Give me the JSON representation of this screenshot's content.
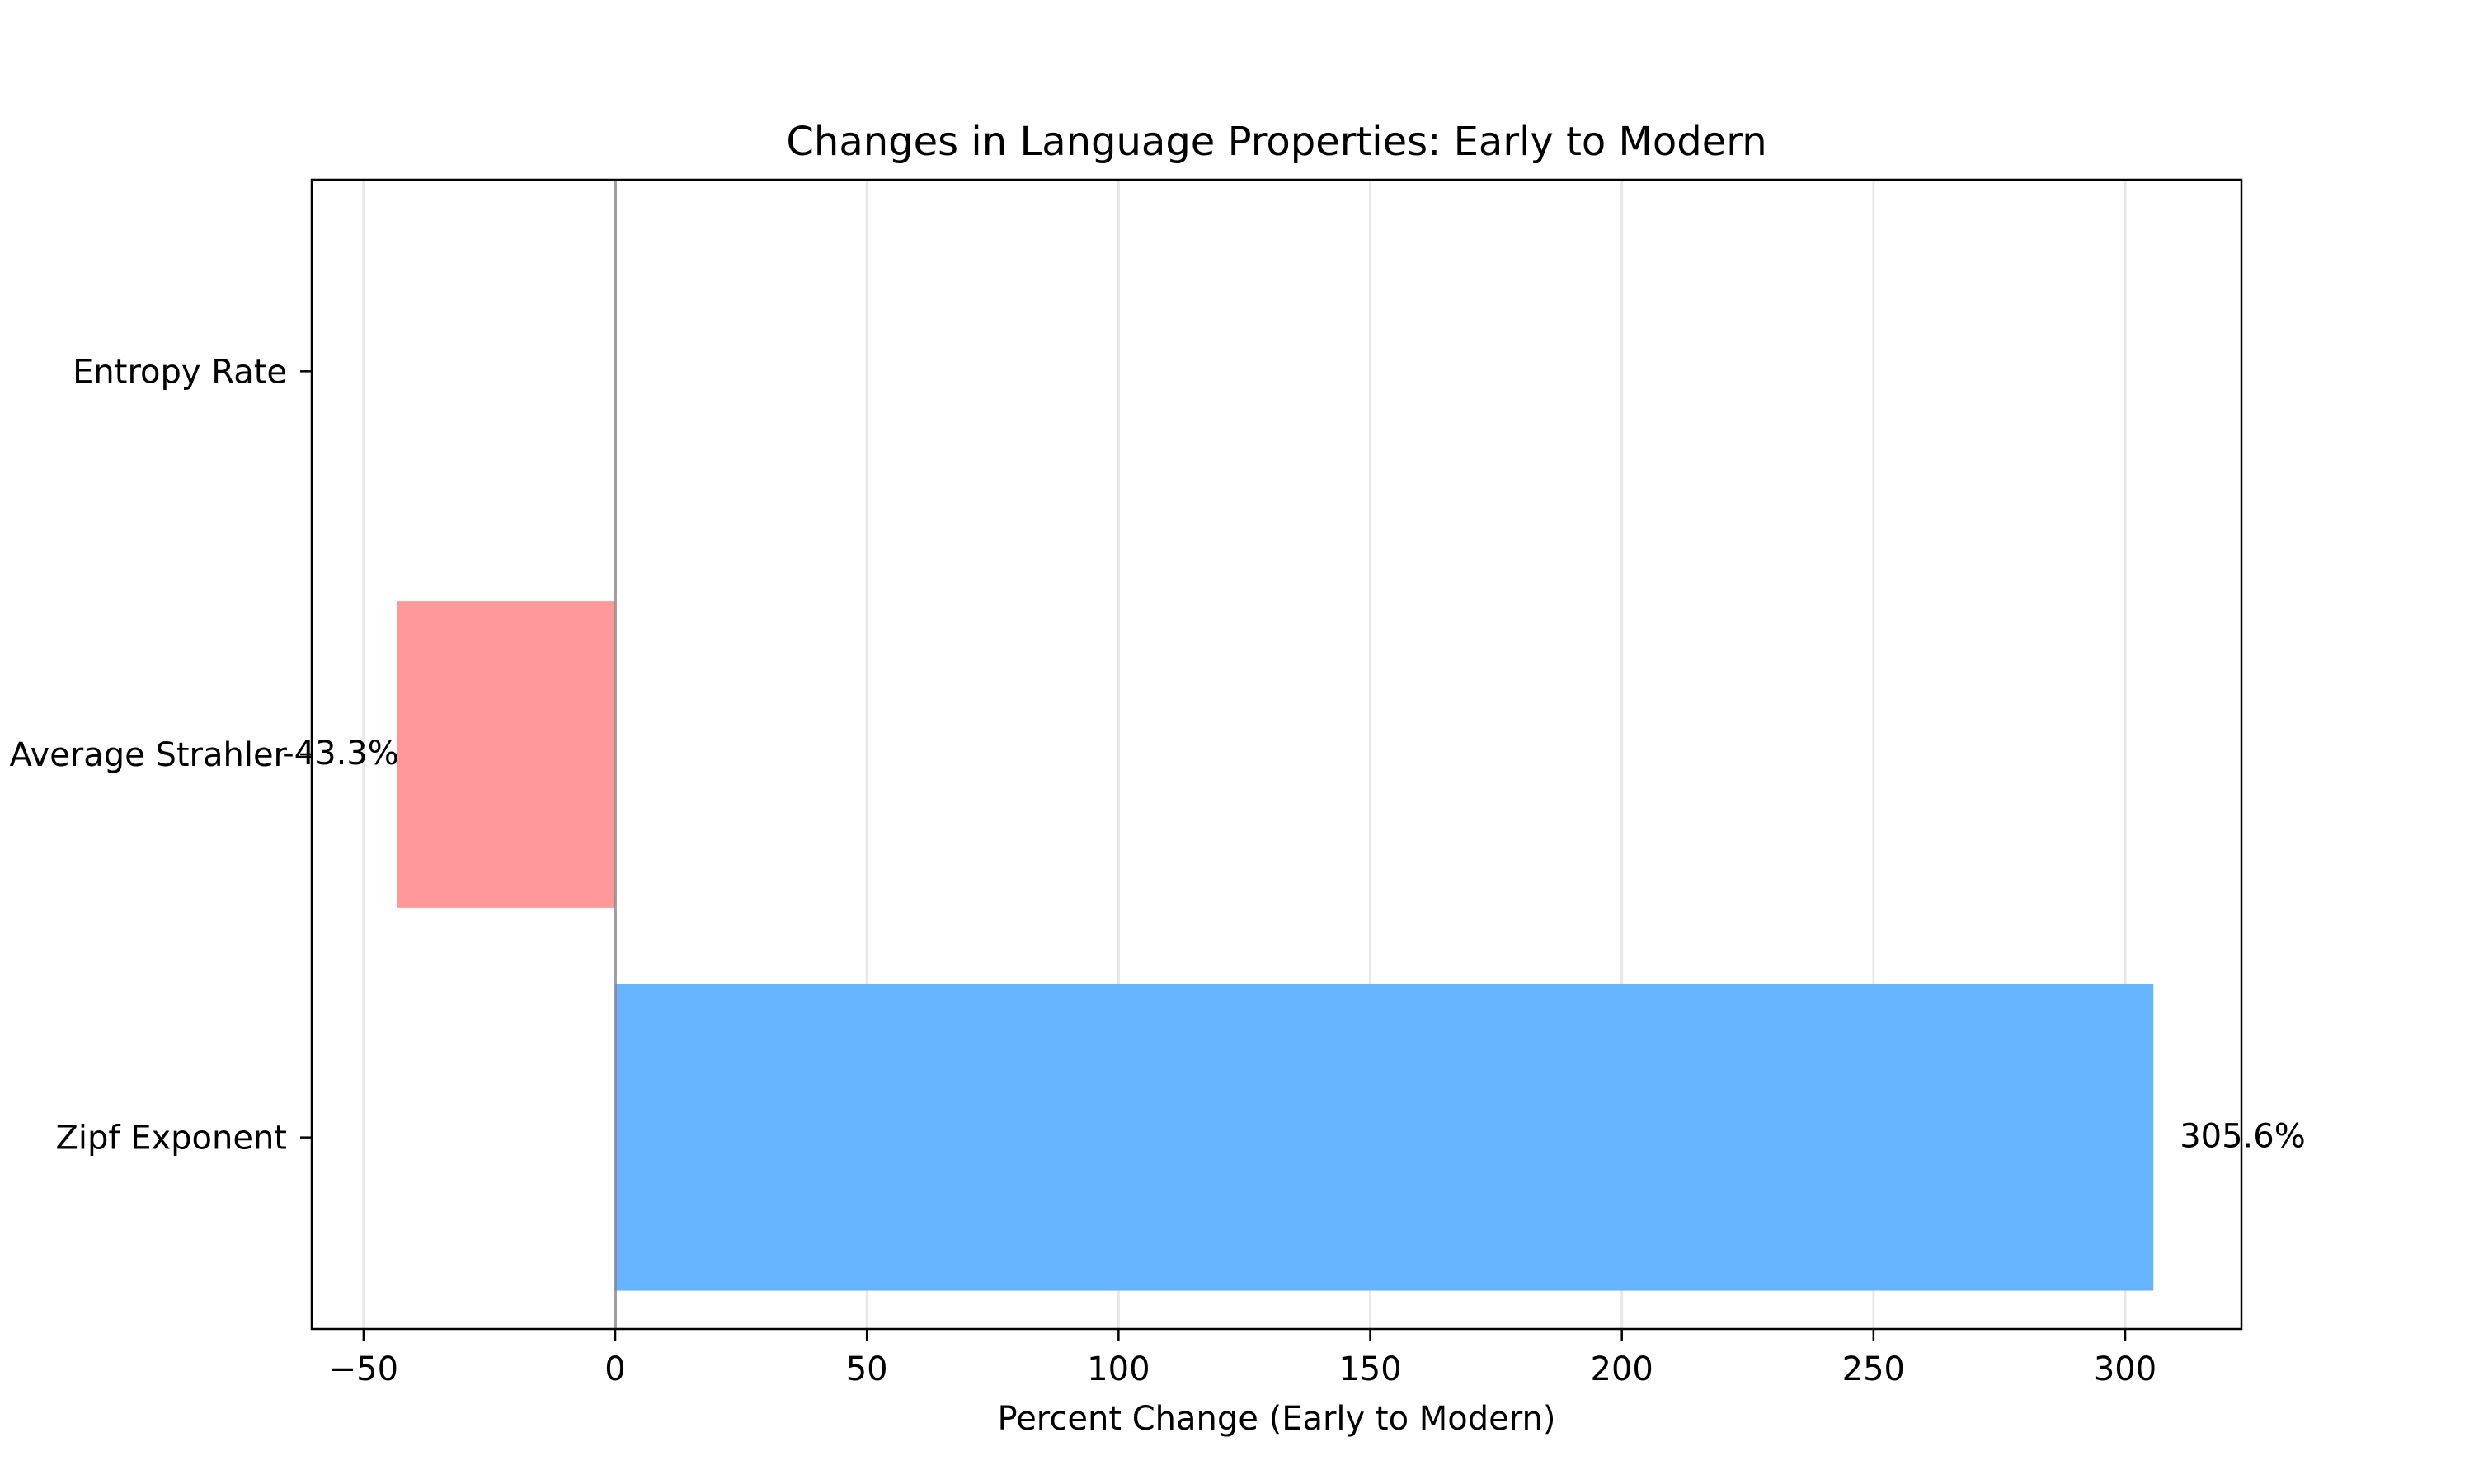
{
  "chart_data": {
    "type": "bar",
    "orientation": "horizontal",
    "title": "Changes in Language Properties: Early to Modern",
    "xlabel": "Percent Change (Early to Modern)",
    "ylabel": "",
    "categories": [
      "Entropy Rate",
      "Average Strahler",
      "Zipf Exponent"
    ],
    "values": [
      0.0,
      -43.3,
      305.6
    ],
    "data_labels": [
      "",
      "-43.3%",
      "305.6%"
    ],
    "bar_colors": [
      "#ff9999",
      "#ff9999",
      "#66b3ff"
    ],
    "xlim": [
      -60.3,
      323.1
    ],
    "xticks": [
      -50,
      0,
      50,
      100,
      150,
      200,
      250,
      300
    ],
    "xtick_labels": [
      "−50",
      "0",
      "50",
      "100",
      "150",
      "200",
      "250",
      "300"
    ],
    "grid": "x",
    "reference_line": 0,
    "legend": "none"
  }
}
